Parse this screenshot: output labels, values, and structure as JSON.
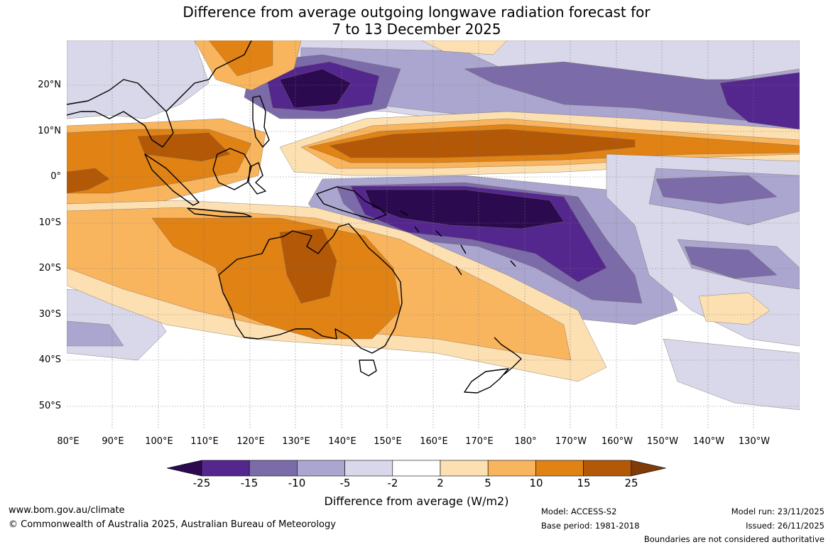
{
  "title": {
    "line1": "Difference from average outgoing longwave radiation forecast for",
    "line2": "7 to 13 December 2025"
  },
  "map": {
    "region": "Australia, Maritime Continent and western Pacific",
    "lat_labels": [
      "20°N",
      "10°N",
      "0°",
      "10°S",
      "20°S",
      "30°S",
      "40°S",
      "50°S"
    ],
    "lon_labels": [
      "80°E",
      "90°E",
      "100°E",
      "110°E",
      "120°E",
      "130°E",
      "140°E",
      "150°E",
      "160°E",
      "170°E",
      "180°",
      "170°W",
      "160°W",
      "150°W",
      "140°W",
      "130°W"
    ]
  },
  "colorbar": {
    "ticks": [
      "-25",
      "-15",
      "-10",
      "-5",
      "-2",
      "2",
      "5",
      "10",
      "15",
      "25"
    ],
    "colors": [
      "#2b0a4f",
      "#54278f",
      "#7b6ba9",
      "#aaa6cf",
      "#d9d8ea",
      "#ffffff",
      "#fde0b2",
      "#f9b55e",
      "#e08214",
      "#b35806",
      "#7f3b08"
    ],
    "label": "Difference from average (W/m2)"
  },
  "footer": {
    "url": "www.bom.gov.au/climate",
    "copyright": "© Commonwealth of Australia 2025, Australian Bureau of Meteorology",
    "model": "Model: ACCESS-S2",
    "base_period": "Base period: 1981-2018",
    "model_run": "Model run: 23/11/2025",
    "issued": "Issued: 26/11/2025",
    "disclaimer": "Boundaries are not considered authoritative"
  }
}
